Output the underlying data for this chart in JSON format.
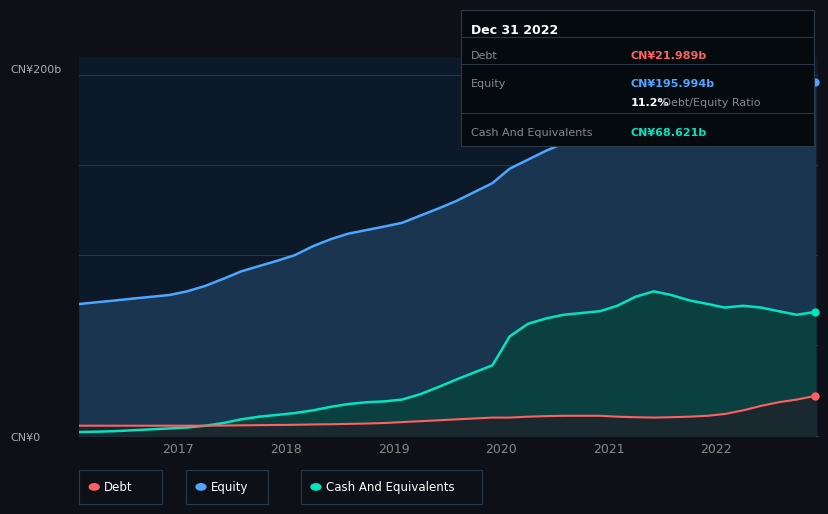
{
  "bg_color": "#0d1117",
  "plot_bg_color": "#0c1929",
  "title_box": {
    "date": "Dec 31 2022",
    "debt_label": "Debt",
    "debt_value": "CN¥21.989b",
    "equity_label": "Equity",
    "equity_value": "CN¥195.994b",
    "ratio_bold": "11.2%",
    "ratio_rest": " Debt/Equity Ratio",
    "cash_label": "Cash And Equivalents",
    "cash_value": "CN¥68.621b"
  },
  "ylabel_top": "CN¥200b",
  "ylabel_bottom": "CN¥0",
  "x_ticks": [
    "2017",
    "2018",
    "2019",
    "2020",
    "2021",
    "2022"
  ],
  "equity_color": "#4da6ff",
  "debt_color": "#ff6060",
  "cash_color": "#00e5c0",
  "equity_fill": "#1a3550",
  "cash_fill": "#0b4040",
  "debt_fill": "#1a2830",
  "years": [
    2016.08,
    2016.25,
    2016.42,
    2016.58,
    2016.75,
    2016.92,
    2017.08,
    2017.25,
    2017.42,
    2017.58,
    2017.75,
    2017.92,
    2018.08,
    2018.25,
    2018.42,
    2018.58,
    2018.75,
    2018.92,
    2019.08,
    2019.25,
    2019.42,
    2019.58,
    2019.75,
    2019.92,
    2020.08,
    2020.25,
    2020.42,
    2020.58,
    2020.75,
    2020.92,
    2021.08,
    2021.25,
    2021.42,
    2021.58,
    2021.75,
    2021.92,
    2022.08,
    2022.25,
    2022.42,
    2022.58,
    2022.75,
    2022.92
  ],
  "equity": [
    73,
    74,
    75,
    76,
    77,
    78,
    80,
    83,
    87,
    91,
    94,
    97,
    100,
    105,
    109,
    112,
    114,
    116,
    118,
    122,
    126,
    130,
    135,
    140,
    148,
    153,
    158,
    162,
    165,
    167,
    170,
    175,
    180,
    185,
    188,
    191,
    194,
    197,
    199,
    197,
    193,
    196
  ],
  "debt": [
    5.5,
    5.5,
    5.5,
    5.5,
    5.5,
    5.5,
    5.5,
    5.5,
    5.6,
    5.7,
    5.8,
    5.9,
    6.0,
    6.2,
    6.3,
    6.5,
    6.7,
    7.0,
    7.5,
    8.0,
    8.5,
    9.0,
    9.5,
    10.0,
    10.0,
    10.5,
    10.8,
    11.0,
    11.0,
    11.0,
    10.5,
    10.2,
    10.0,
    10.2,
    10.5,
    11.0,
    12.0,
    14.0,
    16.5,
    18.5,
    20.0,
    22.0
  ],
  "cash": [
    2.0,
    2.2,
    2.5,
    3.0,
    3.5,
    4.0,
    4.5,
    5.5,
    7.0,
    9.0,
    10.5,
    11.5,
    12.5,
    14.0,
    16.0,
    17.5,
    18.5,
    19.0,
    20.0,
    23.0,
    27.0,
    31.0,
    35.0,
    39.0,
    55.0,
    62.0,
    65.0,
    67.0,
    68.0,
    69.0,
    72.0,
    77.0,
    80.0,
    78.0,
    75.0,
    73.0,
    71.0,
    72.0,
    71.0,
    69.0,
    67.0,
    68.6
  ],
  "ylim": [
    0,
    210
  ],
  "xlim_start": 2016.08,
  "xlim_end": 2022.95,
  "legend_items": [
    "Debt",
    "Equity",
    "Cash And Equivalents"
  ]
}
